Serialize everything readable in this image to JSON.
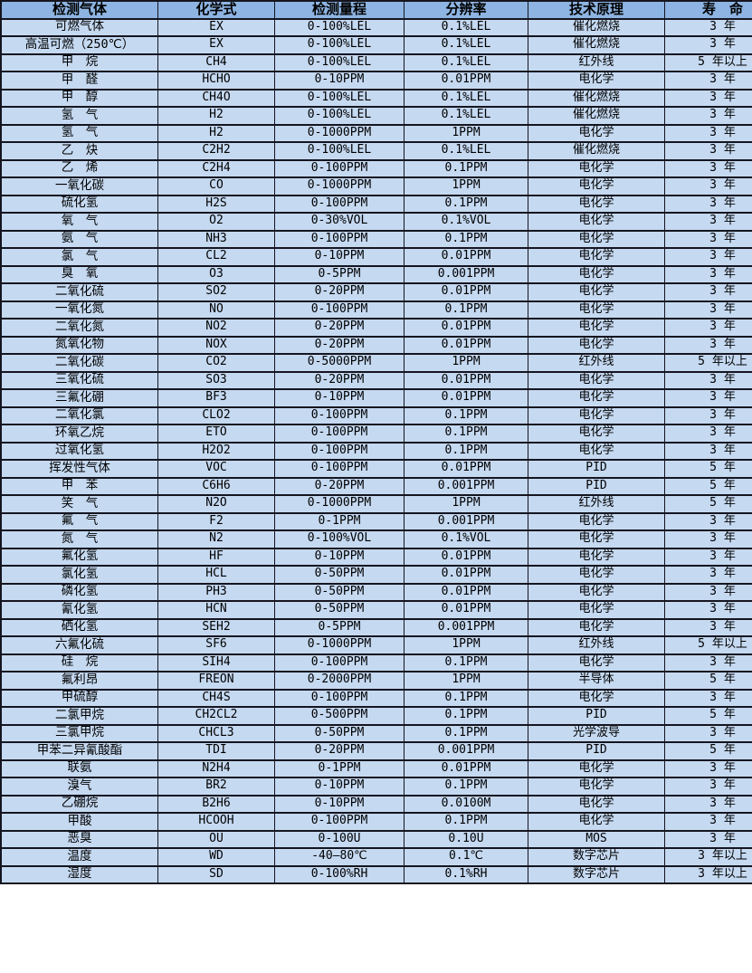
{
  "colors": {
    "header_bg": "#8DB4E2",
    "row_bg": "#C5D9F1",
    "border": "#15151F",
    "text": "#000000"
  },
  "table": {
    "columns": [
      "检测气体",
      "化学式",
      "检测量程",
      "分辨率",
      "技术原理",
      "寿　命"
    ],
    "column_keys": [
      "gas",
      "formula",
      "range",
      "resolution",
      "principle",
      "lifespan"
    ],
    "rows": [
      [
        "可燃气体",
        "EX",
        "0-100%LEL",
        "0.1%LEL",
        "催化燃烧",
        "3 年"
      ],
      [
        "高温可燃（250℃）",
        "EX",
        "0-100%LEL",
        "0.1%LEL",
        "催化燃烧",
        "3 年"
      ],
      [
        "甲　烷",
        "CH4",
        "0-100%LEL",
        "0.1%LEL",
        "红外线",
        "5 年以上"
      ],
      [
        "甲　醛",
        "HCHO",
        "0-10PPM",
        "0.01PPM",
        "电化学",
        "3 年"
      ],
      [
        "甲　醇",
        "CH4O",
        "0-100%LEL",
        "0.1%LEL",
        "催化燃烧",
        "3 年"
      ],
      [
        "氢　气",
        "H2",
        "0-100%LEL",
        "0.1%LEL",
        "催化燃烧",
        "3 年"
      ],
      [
        "氢　气",
        "H2",
        "0-1000PPM",
        "1PPM",
        "电化学",
        "3 年"
      ],
      [
        "乙　炔",
        "C2H2",
        "0-100%LEL",
        "0.1%LEL",
        "催化燃烧",
        "3 年"
      ],
      [
        "乙　烯",
        "C2H4",
        "0-100PPM",
        "0.1PPM",
        "电化学",
        "3 年"
      ],
      [
        "一氧化碳",
        "CO",
        "0-1000PPM",
        "1PPM",
        "电化学",
        "3 年"
      ],
      [
        "硫化氢",
        "H2S",
        "0-100PPM",
        "0.1PPM",
        "电化学",
        "3 年"
      ],
      [
        "氧　气",
        "O2",
        "0-30%VOL",
        "0.1%VOL",
        "电化学",
        "3 年"
      ],
      [
        "氨　气",
        "NH3",
        "0-100PPM",
        "0.1PPM",
        "电化学",
        "3 年"
      ],
      [
        "氯　气",
        "CL2",
        "0-10PPM",
        "0.01PPM",
        "电化学",
        "3 年"
      ],
      [
        "臭　氧",
        "O3",
        "0-5PPM",
        "0.001PPM",
        "电化学",
        "3 年"
      ],
      [
        "二氧化硫",
        "SO2",
        "0-20PPM",
        "0.01PPM",
        "电化学",
        "3 年"
      ],
      [
        "一氧化氮",
        "NO",
        "0-100PPM",
        "0.1PPM",
        "电化学",
        "3 年"
      ],
      [
        "二氧化氮",
        "NO2",
        "0-20PPM",
        "0.01PPM",
        "电化学",
        "3 年"
      ],
      [
        "氮氧化物",
        "NOX",
        "0-20PPM",
        "0.01PPM",
        "电化学",
        "3 年"
      ],
      [
        "二氧化碳",
        "CO2",
        "0-5000PPM",
        "1PPM",
        "红外线",
        "5 年以上"
      ],
      [
        "三氧化硫",
        "SO3",
        "0-20PPM",
        "0.01PPM",
        "电化学",
        "3 年"
      ],
      [
        "三氟化硼",
        "BF3",
        "0-10PPM",
        "0.01PPM",
        "电化学",
        "3 年"
      ],
      [
        "二氧化氯",
        "CLO2",
        "0-100PPM",
        "0.1PPM",
        "电化学",
        "3 年"
      ],
      [
        "环氧乙烷",
        "ETO",
        "0-100PPM",
        "0.1PPM",
        "电化学",
        "3 年"
      ],
      [
        "过氧化氢",
        "H2O2",
        "0-100PPM",
        "0.1PPM",
        "电化学",
        "3 年"
      ],
      [
        "挥发性气体",
        "VOC",
        "0-100PPM",
        "0.01PPM",
        "PID",
        "5 年"
      ],
      [
        "甲　苯",
        "C6H6",
        "0-20PPM",
        "0.001PPM",
        "PID",
        "5 年"
      ],
      [
        "笑　气",
        "N2O",
        "0-1000PPM",
        "1PPM",
        "红外线",
        "5 年"
      ],
      [
        "氟　气",
        "F2",
        "0-1PPM",
        "0.001PPM",
        "电化学",
        "3 年"
      ],
      [
        "氮　气",
        "N2",
        "0-100%VOL",
        "0.1%VOL",
        "电化学",
        "3 年"
      ],
      [
        "氟化氢",
        "HF",
        "0-10PPM",
        "0.01PPM",
        "电化学",
        "3 年"
      ],
      [
        "氯化氢",
        "HCL",
        "0-50PPM",
        "0.01PPM",
        "电化学",
        "3 年"
      ],
      [
        "磷化氢",
        "PH3",
        "0-50PPM",
        "0.01PPM",
        "电化学",
        "3 年"
      ],
      [
        "氰化氢",
        "HCN",
        "0-50PPM",
        "0.01PPM",
        "电化学",
        "3 年"
      ],
      [
        "硒化氢",
        "SEH2",
        "0-5PPM",
        "0.001PPM",
        "电化学",
        "3 年"
      ],
      [
        "六氟化硫",
        "SF6",
        "0-1000PPM",
        "1PPM",
        "红外线",
        "5 年以上"
      ],
      [
        "硅　烷",
        "SIH4",
        "0-100PPM",
        "0.1PPM",
        "电化学",
        "3 年"
      ],
      [
        "氟利昂",
        "FREON",
        "0-2000PPM",
        "1PPM",
        "半导体",
        "5 年"
      ],
      [
        "甲硫醇",
        "CH4S",
        "0-100PPM",
        "0.1PPM",
        "电化学",
        "3 年"
      ],
      [
        "二氯甲烷",
        "CH2CL2",
        "0-500PPM",
        "0.1PPM",
        "PID",
        "5 年"
      ],
      [
        "三氯甲烷",
        "CHCL3",
        "0-50PPM",
        "0.1PPM",
        "光学波导",
        "3 年"
      ],
      [
        "甲苯二异氰酸酯",
        "TDI",
        "0-20PPM",
        "0.001PPM",
        "PID",
        "5 年"
      ],
      [
        "联氨",
        "N2H4",
        "0-1PPM",
        "0.01PPM",
        "电化学",
        "3 年"
      ],
      [
        "溴气",
        "BR2",
        "0-10PPM",
        "0.1PPM",
        "电化学",
        "3 年"
      ],
      [
        "乙硼烷",
        "B2H6",
        "0-10PPM",
        "0.0100M",
        "电化学",
        "3 年"
      ],
      [
        "甲酸",
        "HCOOH",
        "0-100PPM",
        "0.1PPM",
        "电化学",
        "3 年"
      ],
      [
        "恶臭",
        "OU",
        "0-100U",
        "0.10U",
        "MOS",
        "3 年"
      ],
      [
        "温度",
        "WD",
        "-40—80℃",
        "0.1℃",
        "数字芯片",
        "3 年以上"
      ],
      [
        "湿度",
        "SD",
        "0-100%RH",
        "0.1%RH",
        "数字芯片",
        "3 年以上"
      ]
    ]
  }
}
